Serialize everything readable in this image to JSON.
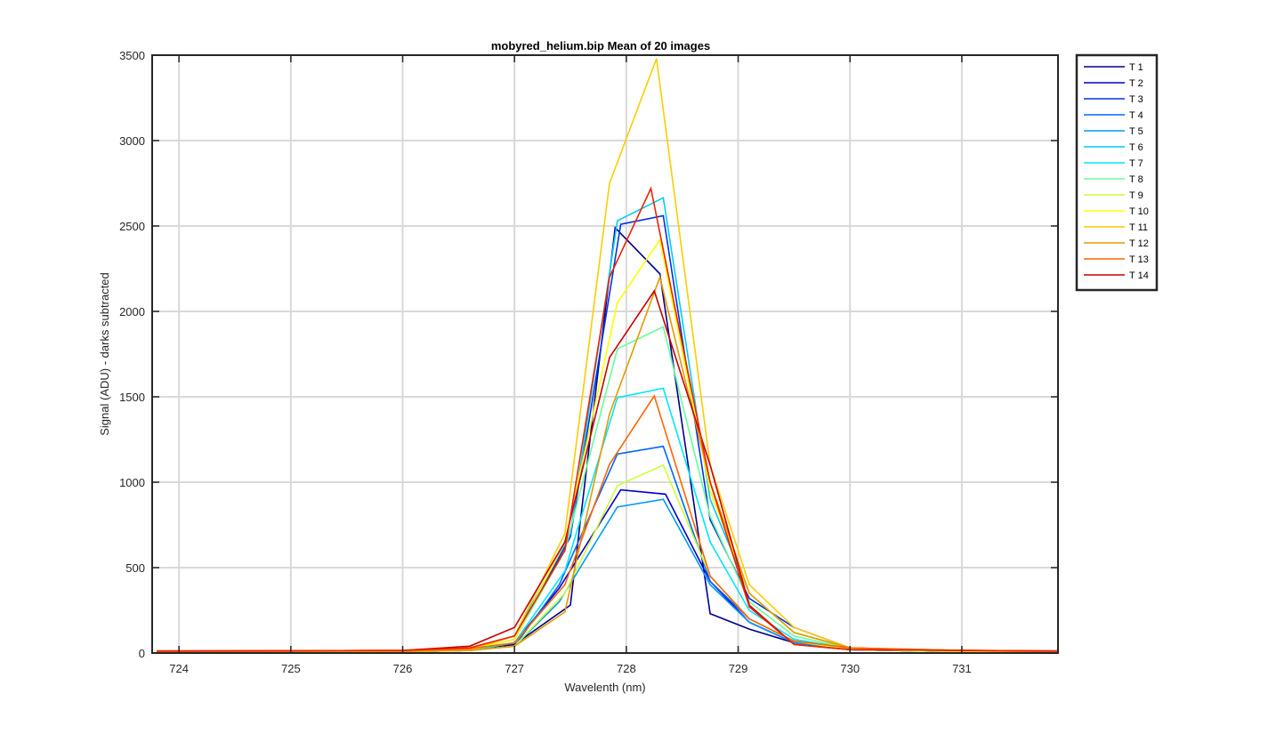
{
  "chart_data": {
    "type": "line",
    "title": "mobyred_helium.bip  Mean of 20 images",
    "xlabel": "Wavelenth (nm)",
    "ylabel": "Signal (ADU) - darks subtracted",
    "xlim": [
      723.76,
      731.86
    ],
    "ylim": [
      0,
      3500
    ],
    "xticks": [
      724,
      725,
      726,
      727,
      728,
      729,
      730,
      731
    ],
    "yticks": [
      0,
      500,
      1000,
      1500,
      2000,
      2500,
      3000,
      3500
    ],
    "grid": true,
    "legend_position": "outside-top-right",
    "series": [
      {
        "name": "T 1",
        "color": "#00008F",
        "x": [
          723.8,
          726.0,
          726.6,
          727.0,
          727.5,
          727.9,
          728.3,
          728.75,
          729.1,
          729.5,
          730.0,
          731.0,
          731.86
        ],
        "y": [
          5,
          8,
          15,
          50,
          280,
          2490,
          2220,
          230,
          140,
          60,
          20,
          8,
          5
        ]
      },
      {
        "name": "T 2",
        "color": "#0000CC",
        "x": [
          723.8,
          726.0,
          726.6,
          727.0,
          727.4,
          727.95,
          728.35,
          728.75,
          729.1,
          729.5,
          730.0,
          731.0,
          731.86
        ],
        "y": [
          5,
          8,
          15,
          60,
          380,
          955,
          930,
          420,
          180,
          60,
          20,
          8,
          5
        ]
      },
      {
        "name": "T 3",
        "color": "#0033E6",
        "x": [
          723.8,
          726.0,
          726.6,
          727.0,
          727.5,
          727.95,
          728.33,
          728.75,
          729.1,
          729.5,
          730.0,
          731.0,
          731.86
        ],
        "y": [
          5,
          8,
          20,
          80,
          680,
          2510,
          2560,
          780,
          320,
          150,
          30,
          10,
          5
        ]
      },
      {
        "name": "T 4",
        "color": "#0066FF",
        "x": [
          723.8,
          726.0,
          726.6,
          727.0,
          727.4,
          727.92,
          728.33,
          728.75,
          729.1,
          729.5,
          730.0,
          731.0,
          731.86
        ],
        "y": [
          5,
          8,
          15,
          40,
          400,
          1165,
          1210,
          420,
          200,
          70,
          20,
          8,
          5
        ]
      },
      {
        "name": "T 5",
        "color": "#0099FF",
        "x": [
          723.8,
          726.0,
          726.6,
          727.0,
          727.4,
          727.92,
          728.33,
          728.75,
          729.1,
          729.5,
          730.0,
          731.0,
          731.86
        ],
        "y": [
          5,
          8,
          15,
          40,
          300,
          855,
          900,
          400,
          180,
          60,
          20,
          8,
          5
        ]
      },
      {
        "name": "T 6",
        "color": "#00CCFF",
        "x": [
          723.8,
          726.0,
          726.6,
          727.0,
          727.5,
          727.92,
          728.33,
          728.75,
          729.1,
          729.5,
          730.0,
          731.0,
          731.86
        ],
        "y": [
          5,
          8,
          20,
          100,
          700,
          2530,
          2665,
          900,
          350,
          120,
          30,
          10,
          5
        ]
      },
      {
        "name": "T 7",
        "color": "#00E6FF",
        "x": [
          723.8,
          726.0,
          726.6,
          727.0,
          727.45,
          727.92,
          728.33,
          728.75,
          729.1,
          729.5,
          730.0,
          731.0,
          731.86
        ],
        "y": [
          5,
          8,
          15,
          60,
          480,
          1495,
          1550,
          650,
          250,
          80,
          25,
          8,
          5
        ]
      },
      {
        "name": "T 8",
        "color": "#66FF99",
        "x": [
          723.8,
          726.0,
          726.6,
          727.0,
          727.45,
          727.92,
          728.33,
          728.75,
          729.1,
          729.5,
          730.0,
          731.0,
          731.86
        ],
        "y": [
          5,
          8,
          15,
          80,
          600,
          1780,
          1910,
          800,
          300,
          100,
          25,
          8,
          5
        ]
      },
      {
        "name": "T 9",
        "color": "#CCFF33",
        "x": [
          723.8,
          726.0,
          726.6,
          727.0,
          727.45,
          727.92,
          728.33,
          728.75,
          729.1,
          729.5,
          730.0,
          731.0,
          731.86
        ],
        "y": [
          5,
          8,
          15,
          40,
          350,
          980,
          1100,
          450,
          200,
          70,
          20,
          8,
          5
        ]
      },
      {
        "name": "T 10",
        "color": "#FFFF00",
        "x": [
          723.8,
          726.0,
          726.6,
          727.0,
          727.45,
          727.92,
          728.3,
          728.75,
          729.1,
          729.5,
          730.0,
          731.0,
          731.86
        ],
        "y": [
          5,
          8,
          20,
          80,
          650,
          2050,
          2420,
          950,
          350,
          120,
          30,
          10,
          5
        ]
      },
      {
        "name": "T 11",
        "color": "#FFCC00",
        "x": [
          723.8,
          726.0,
          726.6,
          727.0,
          727.45,
          727.85,
          728.27,
          728.75,
          729.1,
          729.5,
          730.0,
          731.0,
          731.86
        ],
        "y": [
          5,
          8,
          20,
          100,
          700,
          2750,
          3480,
          1100,
          400,
          150,
          30,
          10,
          5
        ]
      },
      {
        "name": "T 12",
        "color": "#E69900",
        "x": [
          723.8,
          726.0,
          726.6,
          727.0,
          727.45,
          727.85,
          728.3,
          728.75,
          729.1,
          729.5,
          730.0,
          731.0,
          731.86
        ],
        "y": [
          5,
          8,
          15,
          40,
          240,
          1400,
          2200,
          1000,
          350,
          120,
          30,
          15,
          8
        ]
      },
      {
        "name": "T 13",
        "color": "#FF6600",
        "x": [
          723.8,
          726.0,
          726.6,
          727.0,
          727.45,
          727.85,
          728.25,
          728.75,
          729.1,
          729.5,
          730.0,
          731.0,
          731.86
        ],
        "y": [
          10,
          15,
          25,
          60,
          400,
          1105,
          1505,
          450,
          200,
          70,
          30,
          15,
          10
        ]
      },
      {
        "name": "T 14",
        "color": "#CC0000",
        "x": [
          723.8,
          726.0,
          726.6,
          727.0,
          727.45,
          727.85,
          728.25,
          728.75,
          729.1,
          729.5,
          730.0,
          731.0,
          731.86
        ],
        "y": [
          12,
          15,
          40,
          150,
          650,
          1730,
          2120,
          1100,
          280,
          50,
          20,
          15,
          12
        ]
      },
      {
        "name": "",
        "color": "#EE2200",
        "x": [
          723.8,
          726.0,
          726.6,
          727.0,
          727.45,
          727.85,
          728.22,
          728.75,
          729.1,
          729.5,
          730.0,
          731.0,
          731.86
        ],
        "y": [
          12,
          15,
          30,
          100,
          600,
          2200,
          2720,
          1000,
          270,
          50,
          20,
          15,
          12
        ]
      }
    ]
  }
}
